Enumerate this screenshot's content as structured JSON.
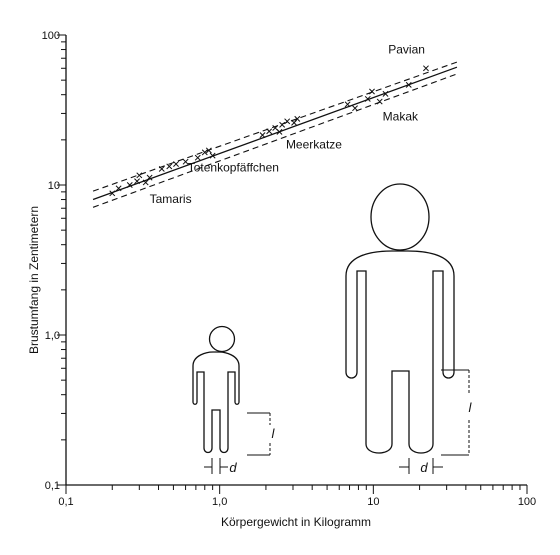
{
  "chart_data": {
    "type": "scatter",
    "x_scale": "log",
    "y_scale": "log",
    "xlim": [
      0.1,
      100
    ],
    "ylim": [
      0.1,
      100
    ],
    "xlabel": "Körpergewicht in Kilogramm",
    "ylabel": "Brustumfang in Zentimetern",
    "x_ticks": [
      {
        "value": 0.1,
        "label": "0,1"
      },
      {
        "value": 1,
        "label": "1,0"
      },
      {
        "value": 10,
        "label": "10"
      },
      {
        "value": 100,
        "label": "100"
      }
    ],
    "y_ticks": [
      {
        "value": 0.1,
        "label": "0,1"
      },
      {
        "value": 1,
        "label": "1,0"
      },
      {
        "value": 10,
        "label": "10"
      },
      {
        "value": 100,
        "label": "100"
      }
    ],
    "grid": false,
    "regression": {
      "x": [
        0.15,
        35
      ],
      "y": [
        8.0,
        61.0
      ]
    },
    "confidence_band": {
      "upper": {
        "x": [
          0.15,
          35
        ],
        "y": [
          9.1,
          66.0
        ]
      },
      "lower": {
        "x": [
          0.15,
          35
        ],
        "y": [
          7.1,
          55.0
        ]
      }
    },
    "points": [
      {
        "x": 0.2,
        "y": 8.8
      },
      {
        "x": 0.22,
        "y": 9.5
      },
      {
        "x": 0.26,
        "y": 10.0
      },
      {
        "x": 0.29,
        "y": 10.6
      },
      {
        "x": 0.3,
        "y": 11.6
      },
      {
        "x": 0.33,
        "y": 10.4
      },
      {
        "x": 0.35,
        "y": 11.2
      },
      {
        "x": 0.42,
        "y": 12.8
      },
      {
        "x": 0.47,
        "y": 13.3
      },
      {
        "x": 0.52,
        "y": 13.8
      },
      {
        "x": 0.6,
        "y": 14.3
      },
      {
        "x": 0.72,
        "y": 15.2
      },
      {
        "x": 0.8,
        "y": 16.5
      },
      {
        "x": 0.85,
        "y": 17.0
      },
      {
        "x": 0.9,
        "y": 15.7
      },
      {
        "x": 1.9,
        "y": 21.5
      },
      {
        "x": 2.1,
        "y": 22.8
      },
      {
        "x": 2.3,
        "y": 24.0
      },
      {
        "x": 2.45,
        "y": 22.6
      },
      {
        "x": 2.55,
        "y": 25.2
      },
      {
        "x": 2.75,
        "y": 26.6
      },
      {
        "x": 3.05,
        "y": 26.0
      },
      {
        "x": 3.2,
        "y": 27.6
      },
      {
        "x": 6.8,
        "y": 34.5
      },
      {
        "x": 7.6,
        "y": 32.5
      },
      {
        "x": 9.2,
        "y": 37.5
      },
      {
        "x": 9.8,
        "y": 42.0
      },
      {
        "x": 11.0,
        "y": 36.0
      },
      {
        "x": 12.0,
        "y": 40.5
      },
      {
        "x": 17.0,
        "y": 46.5
      },
      {
        "x": 22.0,
        "y": 60.0
      }
    ],
    "annotations": [
      {
        "text": "Tamaris",
        "x": 0.35,
        "y": 7.6
      },
      {
        "text": "Totenkopfäffchen",
        "x": 0.62,
        "y": 12.3
      },
      {
        "text": "Meerkatze",
        "x": 2.7,
        "y": 17.5
      },
      {
        "text": "Makak",
        "x": 11.5,
        "y": 27.0
      },
      {
        "text": "Pavian",
        "x": 12.5,
        "y": 75.0
      }
    ],
    "figure_labels": {
      "d": "d",
      "l": "l"
    }
  }
}
